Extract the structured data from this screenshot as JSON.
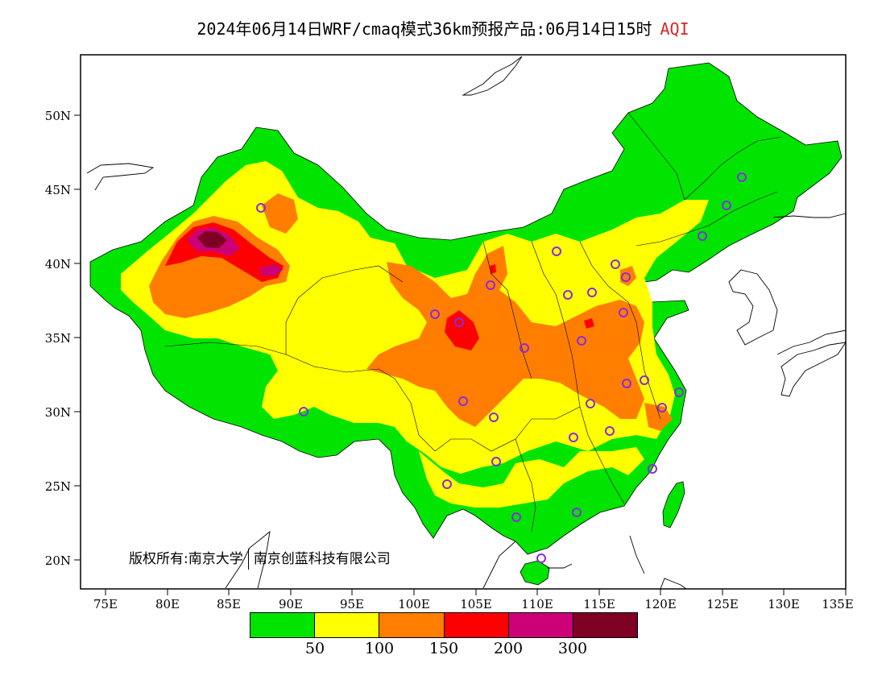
{
  "title": {
    "main": "2024年06月14日WRF/cmaq模式36km预报产品:06月14日15时",
    "variable": "AQI"
  },
  "axes": {
    "lat_labels": [
      "50N",
      "45N",
      "40N",
      "35N",
      "30N",
      "25N",
      "20N"
    ],
    "lon_labels": [
      "75E",
      "80E",
      "85E",
      "90E",
      "95E",
      "100E",
      "105E",
      "110E",
      "115E",
      "120E",
      "125E",
      "130E",
      "135E"
    ],
    "lon_range": [
      73,
      135
    ],
    "lat_range": [
      18,
      54
    ]
  },
  "copyright": {
    "part1": "版权所有:南京大学",
    "part2": "南京创蓝科技有限公司"
  },
  "legend": {
    "colors": [
      "#00e400",
      "#ffff00",
      "#ff7e00",
      "#ff0000",
      "#cc0077",
      "#7e0023"
    ],
    "labels": [
      "50",
      "100",
      "150",
      "200",
      "300"
    ]
  },
  "colors": {
    "good": "#00e400",
    "moderate": "#ffff00",
    "usg": "#ff7e00",
    "unhealthy": "#ff0000",
    "very_unhealthy": "#cc0077",
    "hazardous": "#7e0023",
    "station_marker": "#8a2be2"
  }
}
